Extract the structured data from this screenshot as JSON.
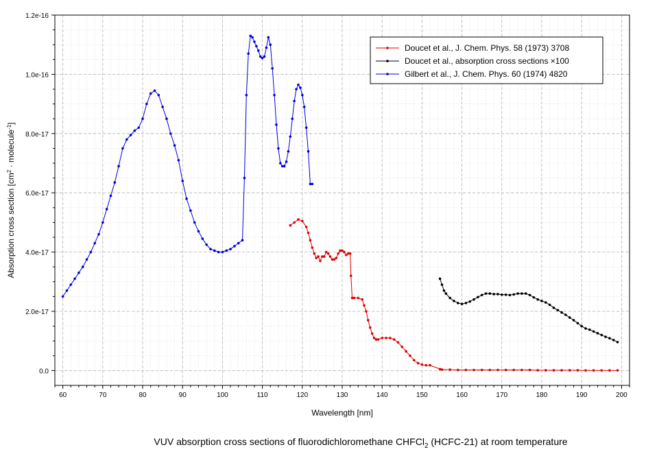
{
  "caption": {
    "main": "VUV absorption cross sections of fluorodichloromethane CHFCl",
    "sub": "2",
    "tail": " (HCFC-21) at room temperature"
  },
  "chart_data": {
    "type": "line",
    "title": "",
    "xlabel": "Wavelength [nm]",
    "ylabel": {
      "base": "Absorption cross section [cm",
      "sup1": "2",
      "mid": " · molecule",
      "sup2": "-1",
      "end": "]"
    },
    "xlim": [
      58,
      202
    ],
    "ylim": [
      -5e-18,
      1.2e-16
    ],
    "xticks": [
      60,
      70,
      80,
      90,
      100,
      110,
      120,
      130,
      140,
      150,
      160,
      170,
      180,
      190,
      200
    ],
    "xtick_labels": [
      "60",
      "70",
      "80",
      "90",
      "100",
      "110",
      "120",
      "130",
      "140",
      "150",
      "160",
      "170",
      "180",
      "190",
      "200"
    ],
    "yticks": [
      0,
      2e-17,
      4e-17,
      6e-17,
      8e-17,
      1e-16,
      1.2e-16
    ],
    "ytick_labels": [
      "0.0",
      "2.0e-17",
      "4.0e-17",
      "6.0e-17",
      "8.0e-17",
      "1.0e-16",
      "1.2e-16"
    ],
    "grid": true,
    "legend_position": "top-right",
    "series": [
      {
        "name": "Doucet et al., J. Chem. Phys. 58 (1973) 3708",
        "color": "#dd0000",
        "x": [
          117.0,
          118.0,
          119.0,
          120.0,
          121.0,
          121.5,
          122.0,
          122.5,
          123.0,
          123.5,
          124.0,
          124.5,
          125.0,
          125.5,
          126.0,
          126.5,
          127.0,
          127.5,
          128.0,
          128.5,
          129.0,
          129.5,
          130.0,
          130.5,
          131.0,
          131.5,
          132.0,
          132.2,
          132.5,
          133.0,
          134.0,
          135.0,
          135.5,
          136.0,
          136.5,
          137.0,
          137.5,
          138.0,
          138.5,
          139.0,
          140.0,
          141.0,
          142.0,
          143.0,
          144.0,
          145.0,
          146.0,
          147.0,
          148.0,
          149.0,
          150.0,
          151.0,
          152.0,
          154.5,
          155.0,
          157.0,
          159.0,
          161.0,
          163.0,
          165.0,
          167.0,
          169.0,
          171.0,
          173.0,
          175.0,
          177.0,
          179.0,
          181.0,
          183.0,
          185.0,
          187.0,
          189.0,
          191.0,
          193.0,
          195.0,
          197.0,
          199.0
        ],
        "y": [
          4.9e-17,
          5e-17,
          5.1e-17,
          5.05e-17,
          4.85e-17,
          4.65e-17,
          4.4e-17,
          4.15e-17,
          3.95e-17,
          3.8e-17,
          3.85e-17,
          3.7e-17,
          3.85e-17,
          3.85e-17,
          4e-17,
          3.95e-17,
          3.85e-17,
          3.75e-17,
          3.75e-17,
          3.8e-17,
          3.95e-17,
          4.05e-17,
          4.05e-17,
          4e-17,
          3.9e-17,
          3.95e-17,
          3.95e-17,
          3.2e-17,
          2.45e-17,
          2.45e-17,
          2.45e-17,
          2.4e-17,
          2.2e-17,
          2e-17,
          1.7e-17,
          1.45e-17,
          1.25e-17,
          1.1e-17,
          1.05e-17,
          1.05e-17,
          1.1e-17,
          1.1e-17,
          1.1e-17,
          1.05e-17,
          9.5e-18,
          8e-18,
          6.5e-18,
          5e-18,
          3.5e-18,
          2.5e-18,
          2e-18,
          1.8e-18,
          1.8e-18,
          5e-19,
          3e-19,
          3e-19,
          2e-19,
          2e-19,
          2e-19,
          2e-19,
          2e-19,
          2e-19,
          2e-19,
          2e-19,
          2e-19,
          2e-19,
          1e-19,
          1e-19,
          1e-19,
          1e-19,
          1e-19,
          1e-19,
          5e-20,
          5e-20,
          5e-20,
          5e-20,
          5e-20
        ]
      },
      {
        "name": "Doucet et al., absorption cross sections ×100",
        "color": "#000000",
        "x": [
          154.5,
          155.0,
          155.5,
          156.0,
          157.0,
          158.0,
          159.0,
          160.0,
          161.0,
          162.0,
          163.0,
          164.0,
          165.0,
          166.0,
          167.0,
          168.0,
          169.0,
          170.0,
          171.0,
          172.0,
          173.0,
          174.0,
          175.0,
          176.0,
          177.0,
          178.0,
          179.0,
          180.0,
          181.0,
          182.0,
          183.0,
          184.0,
          185.0,
          186.0,
          187.0,
          188.0,
          189.0,
          190.0,
          191.0,
          192.0,
          193.0,
          194.0,
          195.0,
          196.0,
          197.0,
          198.0,
          199.0
        ],
        "y": [
          3.1e-17,
          2.9e-17,
          2.7e-17,
          2.6e-17,
          2.45e-17,
          2.35e-17,
          2.28e-17,
          2.25e-17,
          2.28e-17,
          2.33e-17,
          2.4e-17,
          2.48e-17,
          2.55e-17,
          2.6e-17,
          2.6e-17,
          2.58e-17,
          2.58e-17,
          2.56e-17,
          2.56e-17,
          2.55e-17,
          2.57e-17,
          2.6e-17,
          2.6e-17,
          2.6e-17,
          2.55e-17,
          2.47e-17,
          2.4e-17,
          2.35e-17,
          2.3e-17,
          2.22e-17,
          2.12e-17,
          2.04e-17,
          1.96e-17,
          1.88e-17,
          1.79e-17,
          1.7e-17,
          1.6e-17,
          1.5e-17,
          1.42e-17,
          1.38e-17,
          1.32e-17,
          1.26e-17,
          1.2e-17,
          1.14e-17,
          1.09e-17,
          1.03e-17,
          9.6e-18
        ]
      },
      {
        "name": "Gilbert et al., J. Chem. Phys. 60 (1974) 4820",
        "color": "#0000dd",
        "x": [
          60.0,
          61.0,
          62.0,
          63.0,
          64.0,
          65.0,
          66.0,
          67.0,
          68.0,
          69.0,
          70.0,
          71.0,
          72.0,
          73.0,
          74.0,
          75.0,
          76.0,
          77.0,
          78.0,
          79.0,
          80.0,
          81.0,
          82.0,
          83.0,
          84.0,
          85.0,
          86.0,
          87.0,
          88.0,
          89.0,
          90.0,
          91.0,
          92.0,
          93.0,
          94.0,
          95.0,
          96.0,
          97.0,
          98.0,
          99.0,
          100.0,
          101.0,
          102.0,
          103.0,
          104.0,
          105.0,
          105.5,
          106.0,
          106.5,
          107.0,
          107.5,
          108.0,
          108.5,
          109.0,
          109.5,
          110.0,
          110.5,
          111.0,
          111.5,
          112.0,
          112.5,
          113.0,
          113.5,
          114.0,
          114.5,
          115.0,
          115.5,
          116.0,
          116.5,
          117.0,
          117.5,
          118.0,
          118.5,
          119.0,
          119.5,
          120.0,
          120.5,
          121.0,
          121.5,
          122.0,
          122.5
        ],
        "y": [
          2.5e-17,
          2.7e-17,
          2.9e-17,
          3.1e-17,
          3.3e-17,
          3.5e-17,
          3.75e-17,
          4e-17,
          4.3e-17,
          4.6e-17,
          5e-17,
          5.45e-17,
          5.9e-17,
          6.35e-17,
          6.9e-17,
          7.5e-17,
          7.8e-17,
          7.95e-17,
          8.1e-17,
          8.2e-17,
          8.5e-17,
          9e-17,
          9.35e-17,
          9.45e-17,
          9.3e-17,
          8.9e-17,
          8.5e-17,
          8e-17,
          7.6e-17,
          7.1e-17,
          6.4e-17,
          5.8e-17,
          5.4e-17,
          5e-17,
          4.7e-17,
          4.45e-17,
          4.25e-17,
          4.1e-17,
          4.05e-17,
          4e-17,
          4e-17,
          4.05e-17,
          4.1e-17,
          4.2e-17,
          4.3e-17,
          4.4e-17,
          6.5e-17,
          9.3e-17,
          1.07e-16,
          1.13e-16,
          1.125e-16,
          1.11e-16,
          1.095e-16,
          1.08e-16,
          1.06e-16,
          1.055e-16,
          1.06e-16,
          1.09e-16,
          1.125e-16,
          1.1e-16,
          1.02e-16,
          9.3e-17,
          8.3e-17,
          7.5e-17,
          7e-17,
          6.9e-17,
          6.9e-17,
          7.05e-17,
          7.4e-17,
          7.9e-17,
          8.5e-17,
          9.1e-17,
          9.5e-17,
          9.65e-17,
          9.55e-17,
          9.3e-17,
          8.9e-17,
          8.2e-17,
          7.4e-17,
          6.3e-17,
          6.3e-17
        ]
      }
    ]
  }
}
